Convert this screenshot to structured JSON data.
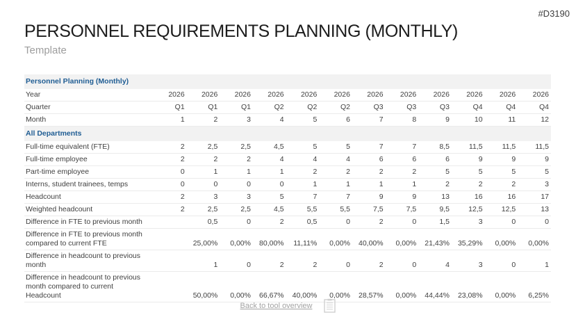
{
  "slide": {
    "code": "#D3190",
    "title": "PERSONNEL REQUIREMENTS PLANNING (MONTHLY)",
    "subtitle": "Template"
  },
  "colors": {
    "accent_blue": "#215e94",
    "section_bar_bg": "#f2f2f2",
    "body_text": "#3f3f3f",
    "muted_gray": "#a3a3a3",
    "row_divider": "#ebebeb"
  },
  "table": {
    "rows": [
      {
        "type": "section",
        "label": "Personnel Planning (Monthly)"
      },
      {
        "type": "data",
        "label": "Year",
        "values": [
          "2026",
          "2026",
          "2026",
          "2026",
          "2026",
          "2026",
          "2026",
          "2026",
          "2026",
          "2026",
          "2026",
          "2026"
        ]
      },
      {
        "type": "data",
        "label": "Quarter",
        "values": [
          "Q1",
          "Q1",
          "Q1",
          "Q2",
          "Q2",
          "Q2",
          "Q3",
          "Q3",
          "Q3",
          "Q4",
          "Q4",
          "Q4"
        ]
      },
      {
        "type": "data",
        "label": "Month",
        "values": [
          "1",
          "2",
          "3",
          "4",
          "5",
          "6",
          "7",
          "8",
          "9",
          "10",
          "11",
          "12"
        ]
      },
      {
        "type": "section",
        "label": "All Departments"
      },
      {
        "type": "data",
        "label": "Full-time equivalent (FTE)",
        "values": [
          "2",
          "2,5",
          "2,5",
          "4,5",
          "5",
          "5",
          "7",
          "7",
          "8,5",
          "11,5",
          "11,5",
          "11,5"
        ]
      },
      {
        "type": "data",
        "label": "Full-time employee",
        "values": [
          "2",
          "2",
          "2",
          "4",
          "4",
          "4",
          "6",
          "6",
          "6",
          "9",
          "9",
          "9"
        ]
      },
      {
        "type": "data",
        "label": "Part-time employee",
        "values": [
          "0",
          "1",
          "1",
          "1",
          "2",
          "2",
          "2",
          "2",
          "5",
          "5",
          "5",
          "5"
        ]
      },
      {
        "type": "data",
        "label": "Interns, student trainees, temps",
        "values": [
          "0",
          "0",
          "0",
          "0",
          "1",
          "1",
          "1",
          "1",
          "2",
          "2",
          "2",
          "3"
        ]
      },
      {
        "type": "data",
        "label": "Headcount",
        "values": [
          "2",
          "3",
          "3",
          "5",
          "7",
          "7",
          "9",
          "9",
          "13",
          "16",
          "16",
          "17"
        ]
      },
      {
        "type": "data",
        "label": "Weighted headcount",
        "values": [
          "2",
          "2,5",
          "2,5",
          "4,5",
          "5,5",
          "5,5",
          "7,5",
          "7,5",
          "9,5",
          "12,5",
          "12,5",
          "13"
        ]
      },
      {
        "type": "data",
        "label": "Difference in FTE to previous month",
        "values": [
          "",
          "0,5",
          "0",
          "2",
          "0,5",
          "0",
          "2",
          "0",
          "1,5",
          "3",
          "0",
          "0"
        ]
      },
      {
        "type": "data",
        "label": "Difference in FTE to previous month\ncompared to current FTE",
        "values": [
          "",
          "25,00%",
          "0,00%",
          "80,00%",
          "11,11%",
          "0,00%",
          "40,00%",
          "0,00%",
          "21,43%",
          "35,29%",
          "0,00%",
          "0,00%"
        ]
      },
      {
        "type": "data",
        "label": "Difference in headcount to previous\nmonth",
        "values": [
          "",
          "1",
          "0",
          "2",
          "2",
          "0",
          "2",
          "0",
          "4",
          "3",
          "0",
          "1"
        ]
      },
      {
        "type": "data",
        "label": "Difference in headcount to previous\nmonth compared to current\nHeadcount",
        "values": [
          "",
          "50,00%",
          "0,00%",
          "66,67%",
          "40,00%",
          "0,00%",
          "28,57%",
          "0,00%",
          "44,44%",
          "23,08%",
          "0,00%",
          "6,25%"
        ]
      }
    ]
  },
  "footer": {
    "back_link": "Back to tool overview",
    "icon": "clipboard-icon"
  }
}
